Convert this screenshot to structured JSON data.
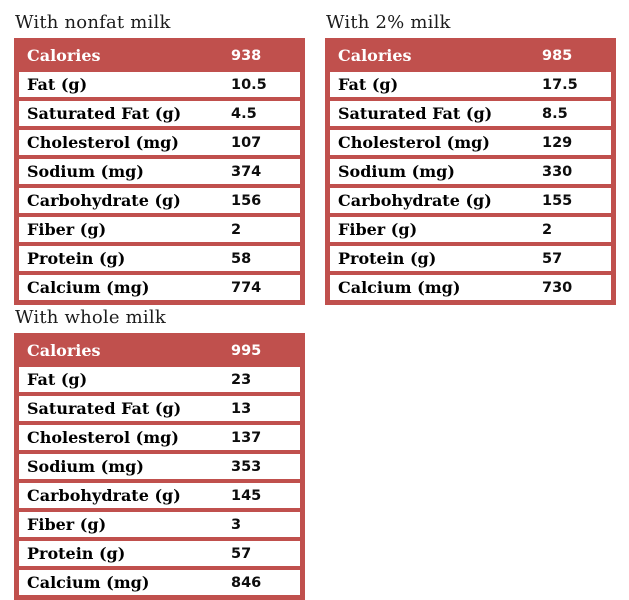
{
  "colors": {
    "table_red": "#c0504d",
    "header_text": "#ffffff",
    "body_text": "#000000",
    "page_background": "#ffffff"
  },
  "chart_data": [
    {
      "type": "table",
      "title": "With nonfat milk",
      "rows": [
        [
          "Calories",
          "938"
        ],
        [
          "Fat (g)",
          "10.5"
        ],
        [
          "Saturated Fat (g)",
          "4.5"
        ],
        [
          "Cholesterol (mg)",
          "107"
        ],
        [
          "Sodium (mg)",
          "374"
        ],
        [
          "Carbohydrate (g)",
          "156"
        ],
        [
          "Fiber (g)",
          "2"
        ],
        [
          "Protein (g)",
          "58"
        ],
        [
          "Calcium (mg)",
          "774"
        ]
      ]
    },
    {
      "type": "table",
      "title": "With 2% milk",
      "rows": [
        [
          "Calories",
          "985"
        ],
        [
          "Fat (g)",
          "17.5"
        ],
        [
          "Saturated Fat (g)",
          "8.5"
        ],
        [
          "Cholesterol (mg)",
          "129"
        ],
        [
          "Sodium (mg)",
          "330"
        ],
        [
          "Carbohydrate (g)",
          "155"
        ],
        [
          "Fiber (g)",
          "2"
        ],
        [
          "Protein (g)",
          "57"
        ],
        [
          "Calcium (mg)",
          "730"
        ]
      ]
    },
    {
      "type": "table",
      "title": "With whole milk",
      "rows": [
        [
          "Calories",
          "995"
        ],
        [
          "Fat (g)",
          "23"
        ],
        [
          "Saturated Fat (g)",
          "13"
        ],
        [
          "Cholesterol (mg)",
          "137"
        ],
        [
          "Sodium (mg)",
          "353"
        ],
        [
          "Carbohydrate (g)",
          "145"
        ],
        [
          "Fiber (g)",
          "3"
        ],
        [
          "Protein (g)",
          "57"
        ],
        [
          "Calcium (mg)",
          "846"
        ]
      ]
    }
  ]
}
